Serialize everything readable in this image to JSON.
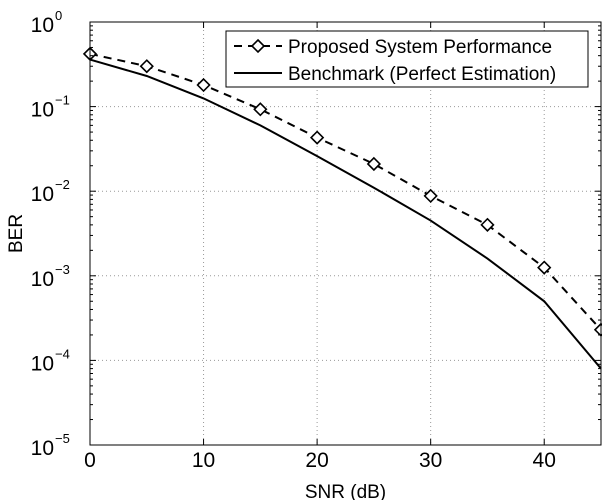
{
  "chart_data": {
    "type": "line",
    "xlabel": "SNR (dB)",
    "ylabel": "BER",
    "xlim": [
      0,
      45
    ],
    "ylim": [
      1e-05,
      1
    ],
    "yscale": "log",
    "grid": true,
    "legend_position": "top-right",
    "x_ticks": [
      0,
      10,
      20,
      30,
      40
    ],
    "x_tick_labels": [
      "0",
      "10",
      "20",
      "30",
      "40"
    ],
    "y_ticks": [
      {
        "value": 1e-05,
        "base": "10",
        "exp": "−5"
      },
      {
        "value": 0.0001,
        "base": "10",
        "exp": "−4"
      },
      {
        "value": 0.001,
        "base": "10",
        "exp": "−3"
      },
      {
        "value": 0.01,
        "base": "10",
        "exp": "−2"
      },
      {
        "value": 0.1,
        "base": "10",
        "exp": "−1"
      },
      {
        "value": 1,
        "base": "10",
        "exp": "0"
      }
    ],
    "series": [
      {
        "name": "Proposed System Performance",
        "style": "dashed",
        "marker": "diamond",
        "color": "#000000",
        "x": [
          0,
          5,
          10,
          15,
          20,
          25,
          30,
          35,
          40,
          45
        ],
        "y": [
          0.42,
          0.3,
          0.18,
          0.093,
          0.043,
          0.021,
          0.0088,
          0.004,
          0.00125,
          0.00023
        ]
      },
      {
        "name": "Benchmark (Perfect Estimation)",
        "style": "solid",
        "marker": "none",
        "color": "#000000",
        "x": [
          0,
          5,
          10,
          15,
          20,
          25,
          30,
          35,
          40,
          45
        ],
        "y": [
          0.36,
          0.23,
          0.125,
          0.06,
          0.026,
          0.011,
          0.0045,
          0.0016,
          0.0005,
          8e-05
        ]
      }
    ]
  }
}
